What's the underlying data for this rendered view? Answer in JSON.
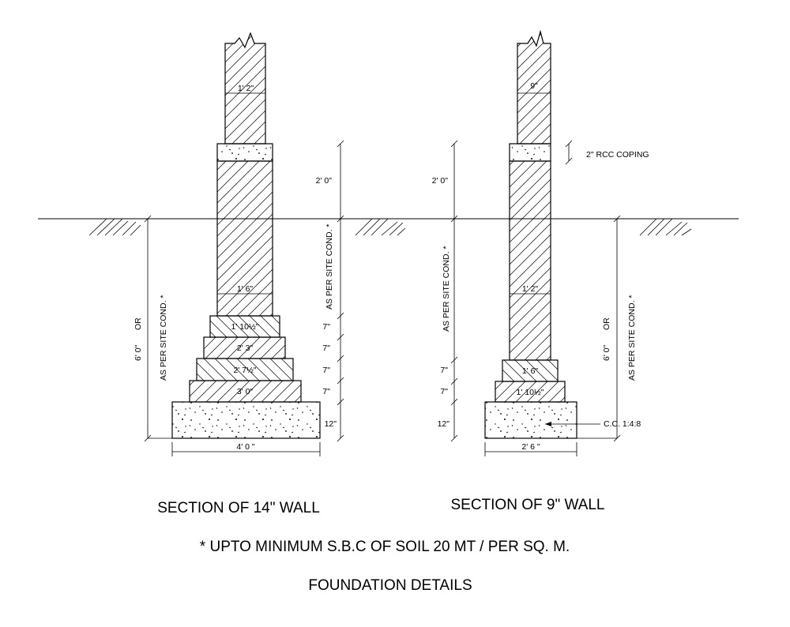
{
  "wall14": {
    "top_width": "1' 2\"",
    "height_above_ground": "2' 0\"",
    "site_cond": "AS PER SITE COND. *",
    "depth_left_a": "6' 0\"",
    "depth_left_or": "OR",
    "depth_left_b": "AS PER SITE COND. *",
    "plinth_width": "1' 6\"",
    "steps": [
      "1' 10½\"",
      "2' 3\"",
      "2' 7½\"",
      "3' 0\""
    ],
    "step_heights": [
      "7\"",
      "7\"",
      "7\"",
      "7\""
    ],
    "base_height": "12\"",
    "base_width": "4' 0 \"",
    "caption": "SECTION OF 14\" WALL"
  },
  "wall9": {
    "top_width": "9\"",
    "coping": "2\" RCC COPING",
    "height_above_ground": "2' 0\"",
    "site_cond": "AS PER SITE COND. *",
    "plinth_width": "1' 2\"",
    "steps": [
      "1' 6\"",
      "1' 10½\""
    ],
    "step_heights": [
      "7\"",
      "7\""
    ],
    "base_height": "12\"",
    "base_width": "2' 6 \"",
    "concrete": "C.C. 1:4:8",
    "depth_right_a": "6' 0\"",
    "depth_right_or": "OR",
    "depth_right_b": "AS PER SITE COND. *",
    "caption": "SECTION OF 9\" WALL"
  },
  "note": "* UPTO MINIMUM S.B.C OF SOIL 20 MT / PER SQ. M.",
  "title": "FOUNDATION DETAILS"
}
